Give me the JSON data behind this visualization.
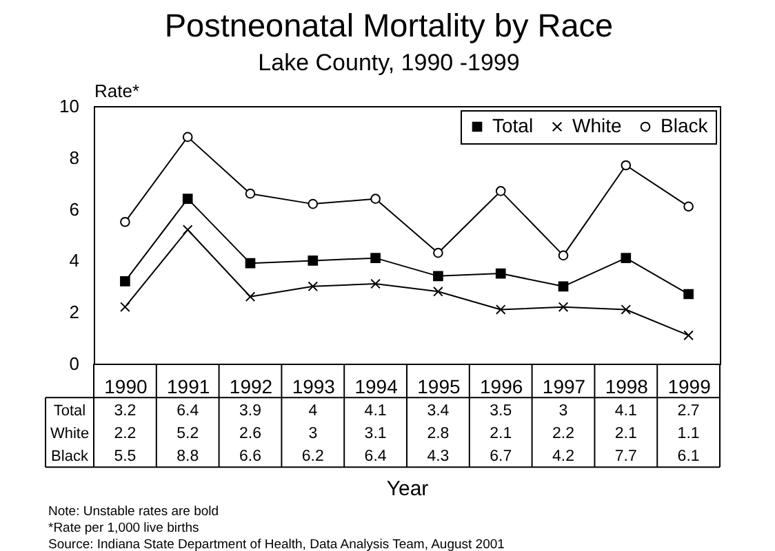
{
  "chart_data": {
    "type": "line",
    "title": "Postneonatal Mortality by Race",
    "subtitle": "Lake County, 1990 -1999",
    "xlabel": "Year",
    "ylabel": "Rate*",
    "categories": [
      "1990",
      "1991",
      "1992",
      "1993",
      "1994",
      "1995",
      "1996",
      "1997",
      "1998",
      "1999"
    ],
    "series": [
      {
        "name": "Total",
        "color": "#000000",
        "marker": "square",
        "values": [
          3.2,
          6.4,
          3.9,
          4,
          4.1,
          3.4,
          3.5,
          3,
          4.1,
          2.7
        ]
      },
      {
        "name": "White",
        "color": "#000000",
        "marker": "cross",
        "values": [
          2.2,
          5.2,
          2.6,
          3,
          3.1,
          2.8,
          2.1,
          2.2,
          2.1,
          1.1
        ]
      },
      {
        "name": "Black",
        "color": "#000000",
        "marker": "circle",
        "values": [
          5.5,
          8.8,
          6.6,
          6.2,
          6.4,
          4.3,
          6.7,
          4.2,
          7.7,
          6.1
        ]
      }
    ],
    "ylim": [
      0,
      10
    ],
    "yticks": [
      0,
      2,
      4,
      6,
      8,
      10
    ],
    "legend": "top right",
    "data_labels": true,
    "annotations": [
      "Note:  Unstable rates are bold",
      "*Rate per 1,000 live births",
      "Source:  Indiana State Department of Health, Data Analysis Team, August 2001"
    ]
  }
}
